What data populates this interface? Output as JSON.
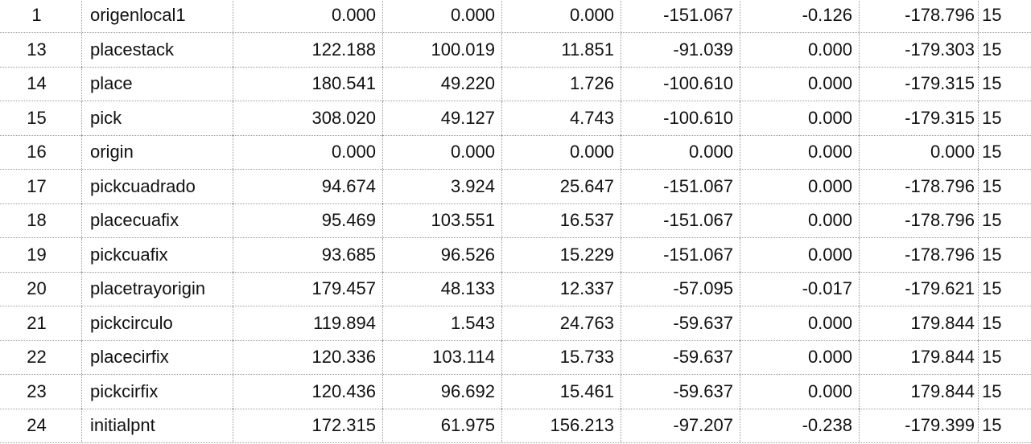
{
  "table": {
    "rows": [
      {
        "idx": "1",
        "name": "origenlocal1",
        "x": "0.000",
        "y": "0.000",
        "z": "0.000",
        "rx": "-151.067",
        "ry": "-0.126",
        "rz": "-178.796",
        "cfg": "15"
      },
      {
        "idx": "13",
        "name": "placestack",
        "x": "122.188",
        "y": "100.019",
        "z": "11.851",
        "rx": "-91.039",
        "ry": "0.000",
        "rz": "-179.303",
        "cfg": "15"
      },
      {
        "idx": "14",
        "name": "place",
        "x": "180.541",
        "y": "49.220",
        "z": "1.726",
        "rx": "-100.610",
        "ry": "0.000",
        "rz": "-179.315",
        "cfg": "15"
      },
      {
        "idx": "15",
        "name": "pick",
        "x": "308.020",
        "y": "49.127",
        "z": "4.743",
        "rx": "-100.610",
        "ry": "0.000",
        "rz": "-179.315",
        "cfg": "15"
      },
      {
        "idx": "16",
        "name": "origin",
        "x": "0.000",
        "y": "0.000",
        "z": "0.000",
        "rx": "0.000",
        "ry": "0.000",
        "rz": "0.000",
        "cfg": "15"
      },
      {
        "idx": "17",
        "name": "pickcuadrado",
        "x": "94.674",
        "y": "3.924",
        "z": "25.647",
        "rx": "-151.067",
        "ry": "0.000",
        "rz": "-178.796",
        "cfg": "15"
      },
      {
        "idx": "18",
        "name": "placecuafix",
        "x": "95.469",
        "y": "103.551",
        "z": "16.537",
        "rx": "-151.067",
        "ry": "0.000",
        "rz": "-178.796",
        "cfg": "15"
      },
      {
        "idx": "19",
        "name": "pickcuafix",
        "x": "93.685",
        "y": "96.526",
        "z": "15.229",
        "rx": "-151.067",
        "ry": "0.000",
        "rz": "-178.796",
        "cfg": "15"
      },
      {
        "idx": "20",
        "name": "placetrayorigin",
        "x": "179.457",
        "y": "48.133",
        "z": "12.337",
        "rx": "-57.095",
        "ry": "-0.017",
        "rz": "-179.621",
        "cfg": "15"
      },
      {
        "idx": "21",
        "name": "pickcirculo",
        "x": "119.894",
        "y": "1.543",
        "z": "24.763",
        "rx": "-59.637",
        "ry": "0.000",
        "rz": "179.844",
        "cfg": "15"
      },
      {
        "idx": "22",
        "name": "placecirfix",
        "x": "120.336",
        "y": "103.114",
        "z": "15.733",
        "rx": "-59.637",
        "ry": "0.000",
        "rz": "179.844",
        "cfg": "15"
      },
      {
        "idx": "23",
        "name": "pickcirfix",
        "x": "120.436",
        "y": "96.692",
        "z": "15.461",
        "rx": "-59.637",
        "ry": "0.000",
        "rz": "179.844",
        "cfg": "15"
      },
      {
        "idx": "24",
        "name": "initialpnt",
        "x": "172.315",
        "y": "61.975",
        "z": "156.213",
        "rx": "-97.207",
        "ry": "-0.238",
        "rz": "-179.399",
        "cfg": "15"
      }
    ]
  }
}
